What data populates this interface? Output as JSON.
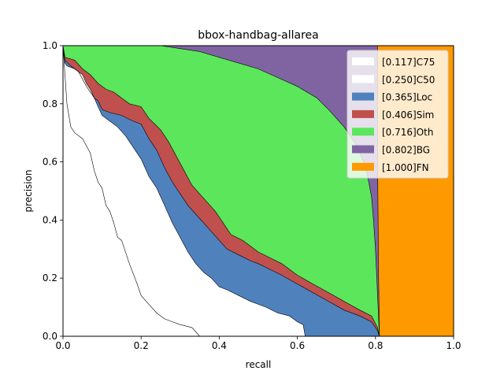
{
  "chart_data": {
    "type": "area",
    "title": "bbox-handbag-allarea",
    "xlabel": "recall",
    "ylabel": "precision",
    "xlim": [
      0,
      1
    ],
    "ylim": [
      0,
      1
    ],
    "xticks": [
      "0.0",
      "0.2",
      "0.4",
      "0.6",
      "0.8",
      "1.0"
    ],
    "yticks": [
      "0.0",
      "0.2",
      "0.4",
      "0.6",
      "0.8",
      "1.0"
    ],
    "grid": false,
    "legend_position": "top-right",
    "series": [
      {
        "name": "[0.117]C75",
        "color": "#ffffff",
        "points": [
          [
            0,
            1
          ],
          [
            0.005,
            0.9
          ],
          [
            0.01,
            0.8
          ],
          [
            0.02,
            0.72
          ],
          [
            0.03,
            0.7
          ],
          [
            0.05,
            0.68
          ],
          [
            0.07,
            0.63
          ],
          [
            0.08,
            0.57
          ],
          [
            0.09,
            0.53
          ],
          [
            0.1,
            0.51
          ],
          [
            0.11,
            0.45
          ],
          [
            0.12,
            0.43
          ],
          [
            0.13,
            0.39
          ],
          [
            0.14,
            0.34
          ],
          [
            0.15,
            0.33
          ],
          [
            0.17,
            0.25
          ],
          [
            0.19,
            0.18
          ],
          [
            0.2,
            0.14
          ],
          [
            0.22,
            0.11
          ],
          [
            0.24,
            0.08
          ],
          [
            0.26,
            0.06
          ],
          [
            0.28,
            0.05
          ],
          [
            0.3,
            0.04
          ],
          [
            0.33,
            0.03
          ],
          [
            0.35,
            0
          ]
        ]
      },
      {
        "name": "[0.250]C50",
        "color": "#ffffff",
        "points": [
          [
            0,
            1
          ],
          [
            0.005,
            0.94
          ],
          [
            0.01,
            0.93
          ],
          [
            0.03,
            0.92
          ],
          [
            0.05,
            0.9
          ],
          [
            0.06,
            0.87
          ],
          [
            0.07,
            0.85
          ],
          [
            0.08,
            0.82
          ],
          [
            0.09,
            0.79
          ],
          [
            0.1,
            0.76
          ],
          [
            0.12,
            0.74
          ],
          [
            0.14,
            0.72
          ],
          [
            0.16,
            0.69
          ],
          [
            0.18,
            0.65
          ],
          [
            0.2,
            0.61
          ],
          [
            0.22,
            0.55
          ],
          [
            0.24,
            0.51
          ],
          [
            0.26,
            0.45
          ],
          [
            0.28,
            0.39
          ],
          [
            0.3,
            0.34
          ],
          [
            0.32,
            0.29
          ],
          [
            0.34,
            0.25
          ],
          [
            0.36,
            0.22
          ],
          [
            0.38,
            0.2
          ],
          [
            0.4,
            0.17
          ],
          [
            0.42,
            0.16
          ],
          [
            0.45,
            0.14
          ],
          [
            0.48,
            0.12
          ],
          [
            0.5,
            0.11
          ],
          [
            0.52,
            0.1
          ],
          [
            0.55,
            0.08
          ],
          [
            0.58,
            0.07
          ],
          [
            0.6,
            0.05
          ],
          [
            0.615,
            0.04
          ],
          [
            0.62,
            0
          ]
        ]
      },
      {
        "name": "[0.365]Loc",
        "color": "#4f81bd",
        "points": [
          [
            0,
            1
          ],
          [
            0.005,
            0.95
          ],
          [
            0.02,
            0.93
          ],
          [
            0.04,
            0.91
          ],
          [
            0.06,
            0.86
          ],
          [
            0.08,
            0.82
          ],
          [
            0.09,
            0.81
          ],
          [
            0.1,
            0.78
          ],
          [
            0.12,
            0.77
          ],
          [
            0.15,
            0.76
          ],
          [
            0.18,
            0.74
          ],
          [
            0.2,
            0.73
          ],
          [
            0.22,
            0.68
          ],
          [
            0.24,
            0.64
          ],
          [
            0.26,
            0.58
          ],
          [
            0.28,
            0.53
          ],
          [
            0.3,
            0.49
          ],
          [
            0.32,
            0.45
          ],
          [
            0.34,
            0.42
          ],
          [
            0.36,
            0.39
          ],
          [
            0.38,
            0.36
          ],
          [
            0.4,
            0.33
          ],
          [
            0.42,
            0.3
          ],
          [
            0.45,
            0.28
          ],
          [
            0.48,
            0.26
          ],
          [
            0.5,
            0.25
          ],
          [
            0.53,
            0.23
          ],
          [
            0.56,
            0.21
          ],
          [
            0.6,
            0.18
          ],
          [
            0.64,
            0.15
          ],
          [
            0.68,
            0.12
          ],
          [
            0.72,
            0.09
          ],
          [
            0.76,
            0.07
          ],
          [
            0.79,
            0.05
          ],
          [
            0.805,
            0.02
          ],
          [
            0.81,
            0
          ]
        ]
      },
      {
        "name": "[0.406]Sim",
        "color": "#c0504d",
        "points": [
          [
            0,
            1
          ],
          [
            0.005,
            0.96
          ],
          [
            0.03,
            0.95
          ],
          [
            0.05,
            0.92
          ],
          [
            0.07,
            0.9
          ],
          [
            0.09,
            0.87
          ],
          [
            0.11,
            0.85
          ],
          [
            0.13,
            0.84
          ],
          [
            0.15,
            0.82
          ],
          [
            0.17,
            0.8
          ],
          [
            0.2,
            0.79
          ],
          [
            0.22,
            0.75
          ],
          [
            0.25,
            0.71
          ],
          [
            0.27,
            0.67
          ],
          [
            0.29,
            0.62
          ],
          [
            0.31,
            0.57
          ],
          [
            0.33,
            0.52
          ],
          [
            0.35,
            0.49
          ],
          [
            0.37,
            0.46
          ],
          [
            0.39,
            0.43
          ],
          [
            0.41,
            0.39
          ],
          [
            0.43,
            0.35
          ],
          [
            0.46,
            0.33
          ],
          [
            0.48,
            0.31
          ],
          [
            0.5,
            0.29
          ],
          [
            0.53,
            0.27
          ],
          [
            0.56,
            0.25
          ],
          [
            0.6,
            0.21
          ],
          [
            0.64,
            0.18
          ],
          [
            0.68,
            0.15
          ],
          [
            0.72,
            0.12
          ],
          [
            0.76,
            0.09
          ],
          [
            0.79,
            0.07
          ],
          [
            0.805,
            0.03
          ],
          [
            0.81,
            0
          ]
        ]
      },
      {
        "name": "[0.716]Oth",
        "color": "#5ce65c",
        "points": [
          [
            0,
            1
          ],
          [
            0.2,
            1
          ],
          [
            0.25,
            1
          ],
          [
            0.3,
            0.99
          ],
          [
            0.35,
            0.98
          ],
          [
            0.4,
            0.96
          ],
          [
            0.45,
            0.94
          ],
          [
            0.5,
            0.92
          ],
          [
            0.55,
            0.89
          ],
          [
            0.6,
            0.86
          ],
          [
            0.65,
            0.82
          ],
          [
            0.68,
            0.78
          ],
          [
            0.72,
            0.72
          ],
          [
            0.75,
            0.66
          ],
          [
            0.77,
            0.6
          ],
          [
            0.78,
            0.55
          ],
          [
            0.79,
            0.48
          ],
          [
            0.795,
            0.4
          ],
          [
            0.8,
            0.3
          ],
          [
            0.805,
            0.15
          ],
          [
            0.81,
            0
          ]
        ]
      },
      {
        "name": "[0.802]BG",
        "color": "#8064a2",
        "points": [
          [
            0,
            1
          ],
          [
            0.805,
            1
          ],
          [
            0.805,
            0.9
          ],
          [
            0.806,
            0.5
          ],
          [
            0.808,
            0.2
          ],
          [
            0.81,
            0
          ]
        ]
      },
      {
        "name": "[1.000]FN",
        "color": "#ff9900",
        "points": [
          [
            0,
            1
          ],
          [
            1,
            1
          ],
          [
            1,
            0
          ]
        ]
      }
    ]
  }
}
